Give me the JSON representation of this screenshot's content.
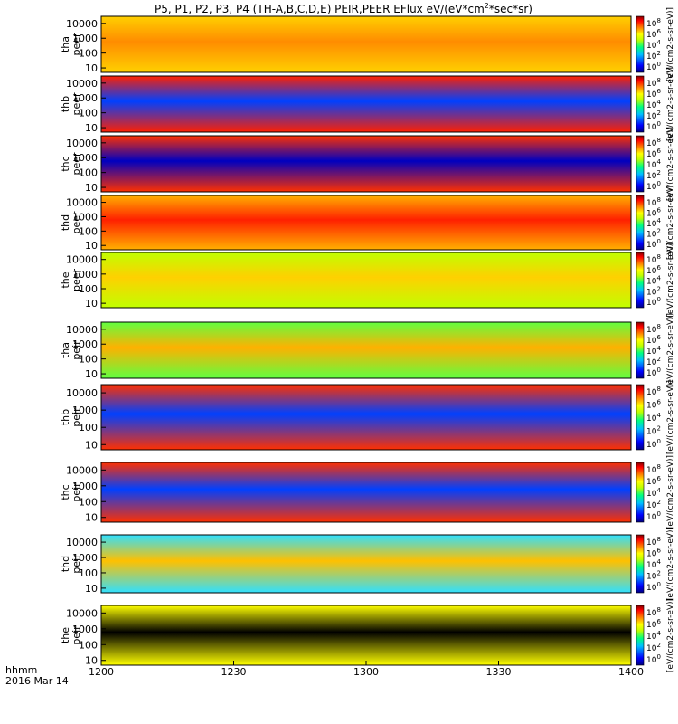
{
  "chart_data": {
    "type": "heatmap",
    "title": "P5, P1, P2, P3, P4 (TH-A,B,C,D,E) PEIR,PEER EFlux eV/(eV*cm",
    "title_sup": "2",
    "title_tail": "*sec*sr)",
    "x_axis": {
      "ticks": [
        "1200",
        "1230",
        "1300",
        "1330",
        "1400"
      ],
      "range": [
        "12:00",
        "14:00"
      ],
      "label_format": "hhmm",
      "date": "2016 Mar 14"
    },
    "y_tick_labels": [
      "10",
      "100",
      "1000",
      "10000"
    ],
    "y_range_eV": [
      5,
      30000
    ],
    "y_scale": "log",
    "colorbar_unit": "[eV/(cm2-s-sr-eV)]",
    "colorbar_ticks": [
      "10",
      "10",
      "10",
      "10",
      "10"
    ],
    "colorbar_exponents": [
      "8",
      "6",
      "4",
      "2",
      "0"
    ],
    "colors": {
      "jet": [
        "#000080",
        "#0000ff",
        "#00c0ff",
        "#00ff80",
        "#c0ff00",
        "#ffff00",
        "#ff8000",
        "#ff0000",
        "#800000"
      ],
      "gap": "#ff0000"
    },
    "panels": [
      {
        "probe": "tha",
        "product": "peer",
        "ylabel_top": "tha",
        "ylabel_bottom": "peer"
      },
      {
        "probe": "thb",
        "product": "peer",
        "ylabel_top": "thb",
        "ylabel_bottom": "peer"
      },
      {
        "probe": "thc",
        "product": "peer",
        "ylabel_top": "thc",
        "ylabel_bottom": "peer"
      },
      {
        "probe": "thd",
        "product": "peer",
        "ylabel_top": "thd",
        "ylabel_bottom": "peer"
      },
      {
        "probe": "the",
        "product": "peer",
        "ylabel_top": "the",
        "ylabel_bottom": "peer"
      },
      {
        "probe": "tha",
        "product": "peir",
        "ylabel_top": "tha",
        "ylabel_bottom": "peir"
      },
      {
        "probe": "thb",
        "product": "peir",
        "ylabel_top": "thb",
        "ylabel_bottom": "peir"
      },
      {
        "probe": "thc",
        "product": "peir",
        "ylabel_top": "thc",
        "ylabel_bottom": "peir"
      },
      {
        "probe": "thd",
        "product": "peir",
        "ylabel_top": "thd",
        "ylabel_bottom": "peir"
      },
      {
        "probe": "the",
        "product": "peir",
        "ylabel_top": "the",
        "ylabel_bottom": "peir"
      }
    ]
  }
}
